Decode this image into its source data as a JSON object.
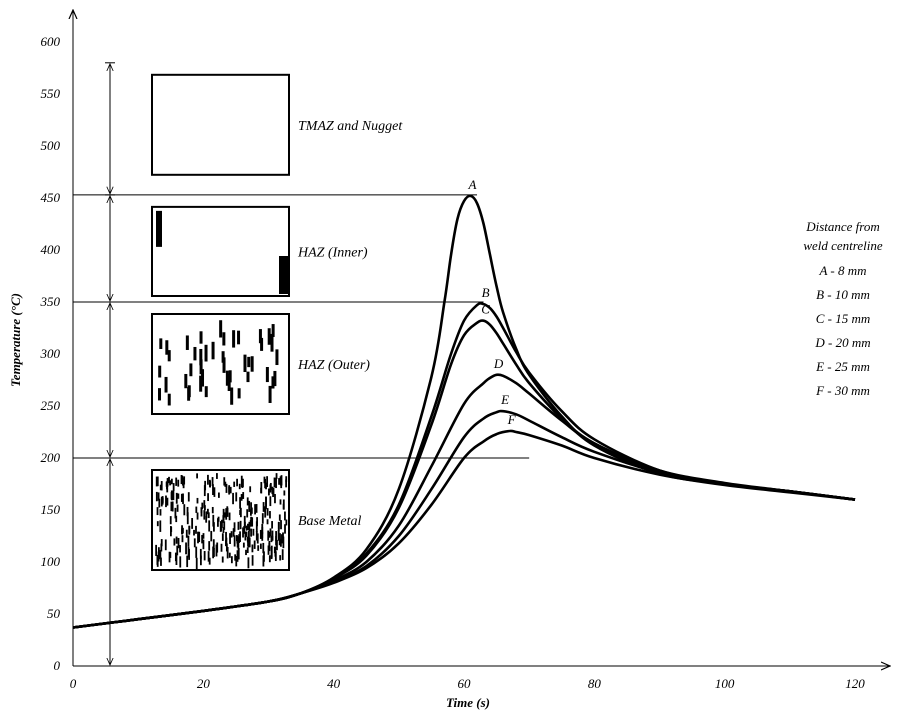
{
  "chart_data": {
    "type": "line",
    "xlabel": "Time (s)",
    "ylabel": "Temperature (°C)",
    "xlim": [
      0,
      120
    ],
    "ylim": [
      0,
      600
    ],
    "x_ticks": [
      "0",
      "20",
      "40",
      "60",
      "80",
      "100",
      "120"
    ],
    "y_ticks": [
      "0",
      "50",
      "100",
      "150",
      "200",
      "250",
      "300",
      "350",
      "400",
      "450",
      "500",
      "550",
      "600"
    ],
    "grid": false,
    "legend": {
      "title_lines": [
        "Distance from",
        "weld centreline"
      ],
      "entries": [
        "A - 8 mm",
        "B - 10 mm",
        "C - 15 mm",
        "D - 20 mm",
        "E - 25 mm",
        "F - 30 mm"
      ],
      "position": "right"
    },
    "reference_lines": [
      {
        "y": 453,
        "x_end": 62
      },
      {
        "y": 350,
        "x_end": 63
      },
      {
        "y": 200,
        "x_end": 70
      }
    ],
    "zones": [
      {
        "label": "TMAZ and Nugget",
        "y_range": [
          453,
          580
        ],
        "pattern": "blank"
      },
      {
        "label": "HAZ (Inner)",
        "y_range": [
          350,
          453
        ],
        "pattern": "sparse-coarse"
      },
      {
        "label": "HAZ (Outer)",
        "y_range": [
          200,
          350
        ],
        "pattern": "medium"
      },
      {
        "label": "Base Metal",
        "y_range": [
          0,
          200
        ],
        "pattern": "dense-fine"
      }
    ],
    "series": [
      {
        "name": "A",
        "x": [
          0,
          10,
          20,
          30,
          35,
          40,
          45,
          50,
          55,
          57,
          58,
          59,
          60,
          61,
          62,
          63,
          64,
          65,
          66,
          68,
          70,
          75,
          80,
          90,
          100,
          110,
          120
        ],
        "y": [
          37,
          45,
          53,
          62,
          70,
          85,
          112,
          170,
          278,
          350,
          395,
          430,
          447,
          452,
          445,
          425,
          395,
          365,
          340,
          305,
          280,
          240,
          212,
          185,
          175,
          168,
          160
        ]
      },
      {
        "name": "B",
        "x": [
          0,
          10,
          20,
          30,
          35,
          40,
          45,
          50,
          55,
          58,
          60,
          62,
          63,
          64,
          65,
          66,
          68,
          70,
          75,
          80,
          90,
          100,
          110,
          120
        ],
        "y": [
          37,
          45,
          53,
          62,
          70,
          84,
          108,
          155,
          240,
          300,
          332,
          347,
          348,
          344,
          336,
          325,
          302,
          282,
          245,
          218,
          188,
          175,
          168,
          160
        ]
      },
      {
        "name": "C",
        "x": [
          0,
          10,
          20,
          30,
          35,
          40,
          45,
          50,
          55,
          58,
          60,
          62,
          63,
          64,
          65,
          66,
          68,
          70,
          75,
          80,
          90,
          100,
          110,
          120
        ],
        "y": [
          37,
          45,
          53,
          62,
          70,
          84,
          106,
          152,
          232,
          290,
          318,
          330,
          332,
          328,
          320,
          310,
          290,
          272,
          238,
          214,
          187,
          175,
          168,
          160
        ]
      },
      {
        "name": "D",
        "x": [
          0,
          10,
          20,
          30,
          35,
          40,
          45,
          50,
          55,
          60,
          63,
          64,
          65,
          66,
          68,
          70,
          75,
          80,
          90,
          100,
          110,
          120
        ],
        "y": [
          37,
          45,
          53,
          62,
          70,
          82,
          100,
          135,
          192,
          252,
          272,
          277,
          280,
          279,
          272,
          262,
          236,
          214,
          188,
          176,
          168,
          160
        ]
      },
      {
        "name": "E",
        "x": [
          0,
          10,
          20,
          30,
          35,
          40,
          45,
          50,
          55,
          60,
          63,
          65,
          66,
          68,
          70,
          75,
          80,
          90,
          100,
          110,
          120
        ],
        "y": [
          37,
          45,
          53,
          62,
          70,
          81,
          96,
          125,
          170,
          220,
          238,
          244,
          245,
          242,
          236,
          220,
          206,
          186,
          175,
          168,
          160
        ]
      },
      {
        "name": "F",
        "x": [
          0,
          10,
          20,
          30,
          35,
          40,
          45,
          50,
          55,
          60,
          63,
          65,
          67,
          68,
          70,
          75,
          80,
          90,
          100,
          110,
          120
        ],
        "y": [
          37,
          45,
          53,
          62,
          70,
          80,
          94,
          118,
          155,
          200,
          216,
          223,
          226,
          225,
          222,
          212,
          200,
          184,
          174,
          167,
          160
        ]
      }
    ]
  }
}
